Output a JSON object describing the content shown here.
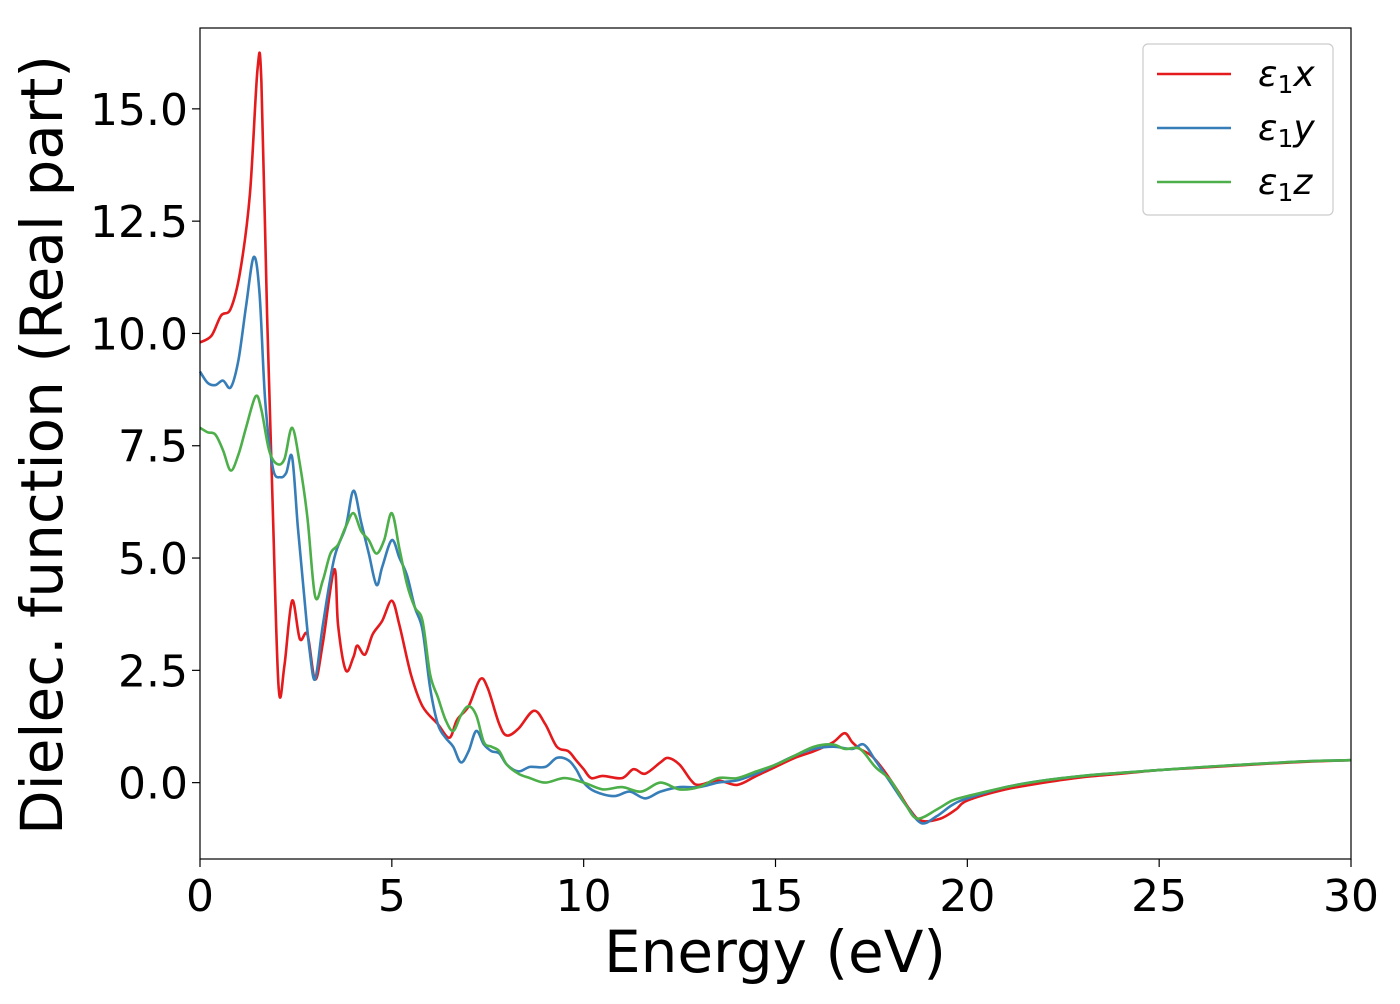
{
  "chart_data": {
    "type": "line",
    "xlabel": "Energy (eV)",
    "ylabel": "Dielec. function (Real part)",
    "xlim": [
      0,
      30
    ],
    "ylim": [
      -1.7,
      16.8
    ],
    "x_ticks": [
      0,
      5,
      10,
      15,
      20,
      25,
      30
    ],
    "y_ticks": [
      0.0,
      2.5,
      5.0,
      7.5,
      10.0,
      12.5,
      15.0
    ],
    "x_tick_labels": [
      "0",
      "5",
      "10",
      "15",
      "20",
      "25",
      "30"
    ],
    "y_tick_labels": [
      "0.0",
      "2.5",
      "5.0",
      "7.5",
      "10.0",
      "12.5",
      "15.0"
    ],
    "grid": false,
    "legend_position": "top-right",
    "legend_labels": [
      {
        "base": "ε",
        "sub": "1",
        "var": "x"
      },
      {
        "base": "ε",
        "sub": "1",
        "var": "y"
      },
      {
        "base": "ε",
        "sub": "1",
        "var": "z"
      }
    ],
    "series": [
      {
        "name": "ε1x",
        "color": "#e41a1c",
        "points": [
          [
            0,
            9.8
          ],
          [
            0.3,
            9.95
          ],
          [
            0.55,
            10.4
          ],
          [
            0.8,
            10.55
          ],
          [
            1.05,
            11.4
          ],
          [
            1.3,
            13.1
          ],
          [
            1.5,
            15.9
          ],
          [
            1.6,
            15.6
          ],
          [
            1.75,
            10.4
          ],
          [
            1.9,
            6.0
          ],
          [
            2.05,
            2.1
          ],
          [
            2.2,
            2.6
          ],
          [
            2.4,
            4.05
          ],
          [
            2.6,
            3.2
          ],
          [
            2.8,
            3.3
          ],
          [
            3.0,
            2.3
          ],
          [
            3.2,
            3.1
          ],
          [
            3.5,
            4.75
          ],
          [
            3.6,
            3.5
          ],
          [
            3.8,
            2.5
          ],
          [
            4.0,
            2.8
          ],
          [
            4.1,
            3.05
          ],
          [
            4.3,
            2.85
          ],
          [
            4.5,
            3.3
          ],
          [
            4.75,
            3.6
          ],
          [
            5.0,
            4.05
          ],
          [
            5.2,
            3.5
          ],
          [
            5.5,
            2.4
          ],
          [
            5.8,
            1.7
          ],
          [
            6.2,
            1.3
          ],
          [
            6.5,
            1.0
          ],
          [
            6.7,
            1.4
          ],
          [
            7.0,
            1.7
          ],
          [
            7.3,
            2.3
          ],
          [
            7.5,
            2.1
          ],
          [
            7.8,
            1.3
          ],
          [
            8.0,
            1.05
          ],
          [
            8.3,
            1.2
          ],
          [
            8.7,
            1.6
          ],
          [
            9.0,
            1.3
          ],
          [
            9.3,
            0.8
          ],
          [
            9.6,
            0.7
          ],
          [
            9.8,
            0.5
          ],
          [
            10.0,
            0.3
          ],
          [
            10.2,
            0.1
          ],
          [
            10.5,
            0.15
          ],
          [
            11.0,
            0.1
          ],
          [
            11.3,
            0.3
          ],
          [
            11.6,
            0.2
          ],
          [
            12.0,
            0.45
          ],
          [
            12.2,
            0.55
          ],
          [
            12.5,
            0.4
          ],
          [
            12.8,
            0.05
          ],
          [
            13.0,
            -0.05
          ],
          [
            13.5,
            0.05
          ],
          [
            14.0,
            -0.05
          ],
          [
            14.5,
            0.15
          ],
          [
            15.0,
            0.35
          ],
          [
            15.5,
            0.55
          ],
          [
            16.0,
            0.7
          ],
          [
            16.5,
            0.9
          ],
          [
            16.8,
            1.1
          ],
          [
            17.0,
            0.9
          ],
          [
            17.2,
            0.75
          ],
          [
            17.5,
            0.6
          ],
          [
            17.8,
            0.3
          ],
          [
            18.2,
            -0.2
          ],
          [
            18.5,
            -0.6
          ],
          [
            18.8,
            -0.85
          ],
          [
            19.3,
            -0.8
          ],
          [
            19.7,
            -0.6
          ],
          [
            20.0,
            -0.4
          ],
          [
            21,
            -0.15
          ],
          [
            22,
            0.0
          ],
          [
            23,
            0.12
          ],
          [
            24,
            0.2
          ],
          [
            25,
            0.28
          ],
          [
            26,
            0.33
          ],
          [
            27,
            0.38
          ],
          [
            28,
            0.43
          ],
          [
            29,
            0.47
          ],
          [
            30,
            0.5
          ]
        ]
      },
      {
        "name": "ε1y",
        "color": "#377eb8",
        "points": [
          [
            0,
            9.15
          ],
          [
            0.2,
            8.9
          ],
          [
            0.4,
            8.85
          ],
          [
            0.6,
            8.95
          ],
          [
            0.8,
            8.8
          ],
          [
            1.0,
            9.4
          ],
          [
            1.2,
            10.6
          ],
          [
            1.4,
            11.7
          ],
          [
            1.55,
            10.9
          ],
          [
            1.7,
            8.5
          ],
          [
            1.9,
            7.0
          ],
          [
            2.1,
            6.8
          ],
          [
            2.25,
            6.9
          ],
          [
            2.4,
            7.25
          ],
          [
            2.55,
            5.7
          ],
          [
            2.7,
            4.3
          ],
          [
            2.85,
            3.0
          ],
          [
            3.0,
            2.3
          ],
          [
            3.2,
            3.5
          ],
          [
            3.5,
            5.0
          ],
          [
            3.8,
            5.7
          ],
          [
            4.0,
            6.5
          ],
          [
            4.2,
            5.8
          ],
          [
            4.4,
            5.1
          ],
          [
            4.6,
            4.4
          ],
          [
            4.75,
            4.8
          ],
          [
            5.0,
            5.4
          ],
          [
            5.2,
            5.0
          ],
          [
            5.4,
            4.6
          ],
          [
            5.6,
            3.9
          ],
          [
            5.8,
            3.4
          ],
          [
            6.0,
            2.1
          ],
          [
            6.2,
            1.3
          ],
          [
            6.4,
            1.0
          ],
          [
            6.6,
            0.8
          ],
          [
            6.8,
            0.45
          ],
          [
            7.0,
            0.7
          ],
          [
            7.2,
            1.15
          ],
          [
            7.4,
            0.85
          ],
          [
            7.6,
            0.7
          ],
          [
            7.8,
            0.65
          ],
          [
            8.0,
            0.4
          ],
          [
            8.3,
            0.25
          ],
          [
            8.6,
            0.35
          ],
          [
            9.0,
            0.35
          ],
          [
            9.3,
            0.55
          ],
          [
            9.6,
            0.5
          ],
          [
            9.8,
            0.3
          ],
          [
            10.0,
            0.0
          ],
          [
            10.3,
            -0.2
          ],
          [
            10.8,
            -0.3
          ],
          [
            11.2,
            -0.2
          ],
          [
            11.6,
            -0.35
          ],
          [
            12.0,
            -0.2
          ],
          [
            12.5,
            -0.1
          ],
          [
            13.0,
            -0.1
          ],
          [
            13.5,
            0.0
          ],
          [
            14.0,
            0.05
          ],
          [
            14.5,
            0.2
          ],
          [
            15.0,
            0.4
          ],
          [
            15.5,
            0.6
          ],
          [
            16.0,
            0.75
          ],
          [
            16.5,
            0.8
          ],
          [
            17.0,
            0.75
          ],
          [
            17.3,
            0.85
          ],
          [
            17.6,
            0.5
          ],
          [
            18.0,
            0.0
          ],
          [
            18.4,
            -0.5
          ],
          [
            18.8,
            -0.9
          ],
          [
            19.2,
            -0.75
          ],
          [
            19.6,
            -0.5
          ],
          [
            20.0,
            -0.35
          ],
          [
            21,
            -0.1
          ],
          [
            22,
            0.05
          ],
          [
            23,
            0.15
          ],
          [
            24,
            0.22
          ],
          [
            25,
            0.28
          ],
          [
            26,
            0.34
          ],
          [
            27,
            0.39
          ],
          [
            28,
            0.44
          ],
          [
            29,
            0.48
          ],
          [
            30,
            0.5
          ]
        ]
      },
      {
        "name": "ε1z",
        "color": "#4daf4a",
        "points": [
          [
            0,
            7.9
          ],
          [
            0.2,
            7.8
          ],
          [
            0.4,
            7.75
          ],
          [
            0.6,
            7.4
          ],
          [
            0.8,
            6.95
          ],
          [
            1.0,
            7.3
          ],
          [
            1.2,
            7.9
          ],
          [
            1.45,
            8.6
          ],
          [
            1.6,
            8.3
          ],
          [
            1.8,
            7.4
          ],
          [
            2.0,
            7.1
          ],
          [
            2.2,
            7.2
          ],
          [
            2.4,
            7.9
          ],
          [
            2.6,
            7.1
          ],
          [
            2.8,
            5.9
          ],
          [
            3.0,
            4.15
          ],
          [
            3.2,
            4.5
          ],
          [
            3.4,
            5.1
          ],
          [
            3.6,
            5.3
          ],
          [
            3.8,
            5.7
          ],
          [
            4.0,
            6.0
          ],
          [
            4.2,
            5.6
          ],
          [
            4.4,
            5.4
          ],
          [
            4.6,
            5.1
          ],
          [
            4.8,
            5.4
          ],
          [
            5.0,
            6.0
          ],
          [
            5.2,
            5.2
          ],
          [
            5.4,
            4.4
          ],
          [
            5.6,
            3.9
          ],
          [
            5.8,
            3.6
          ],
          [
            6.0,
            2.4
          ],
          [
            6.2,
            1.9
          ],
          [
            6.4,
            1.4
          ],
          [
            6.6,
            1.15
          ],
          [
            6.8,
            1.5
          ],
          [
            7.0,
            1.7
          ],
          [
            7.2,
            1.5
          ],
          [
            7.4,
            0.9
          ],
          [
            7.6,
            0.8
          ],
          [
            7.8,
            0.7
          ],
          [
            8.0,
            0.4
          ],
          [
            8.3,
            0.2
          ],
          [
            8.6,
            0.1
          ],
          [
            9.0,
            0.0
          ],
          [
            9.5,
            0.1
          ],
          [
            10.0,
            0.0
          ],
          [
            10.5,
            -0.15
          ],
          [
            11.0,
            -0.1
          ],
          [
            11.5,
            -0.2
          ],
          [
            12.0,
            0.0
          ],
          [
            12.5,
            -0.15
          ],
          [
            13.0,
            -0.1
          ],
          [
            13.5,
            0.1
          ],
          [
            14.0,
            0.1
          ],
          [
            14.5,
            0.25
          ],
          [
            15.0,
            0.4
          ],
          [
            15.5,
            0.6
          ],
          [
            16.0,
            0.8
          ],
          [
            16.5,
            0.85
          ],
          [
            16.8,
            0.75
          ],
          [
            17.2,
            0.75
          ],
          [
            17.6,
            0.35
          ],
          [
            18.0,
            0.05
          ],
          [
            18.4,
            -0.5
          ],
          [
            18.7,
            -0.8
          ],
          [
            19.2,
            -0.6
          ],
          [
            19.6,
            -0.4
          ],
          [
            20.0,
            -0.3
          ],
          [
            21,
            -0.1
          ],
          [
            22,
            0.05
          ],
          [
            23,
            0.15
          ],
          [
            24,
            0.22
          ],
          [
            25,
            0.28
          ],
          [
            26,
            0.34
          ],
          [
            27,
            0.39
          ],
          [
            28,
            0.44
          ],
          [
            29,
            0.48
          ],
          [
            30,
            0.5
          ]
        ]
      }
    ]
  }
}
